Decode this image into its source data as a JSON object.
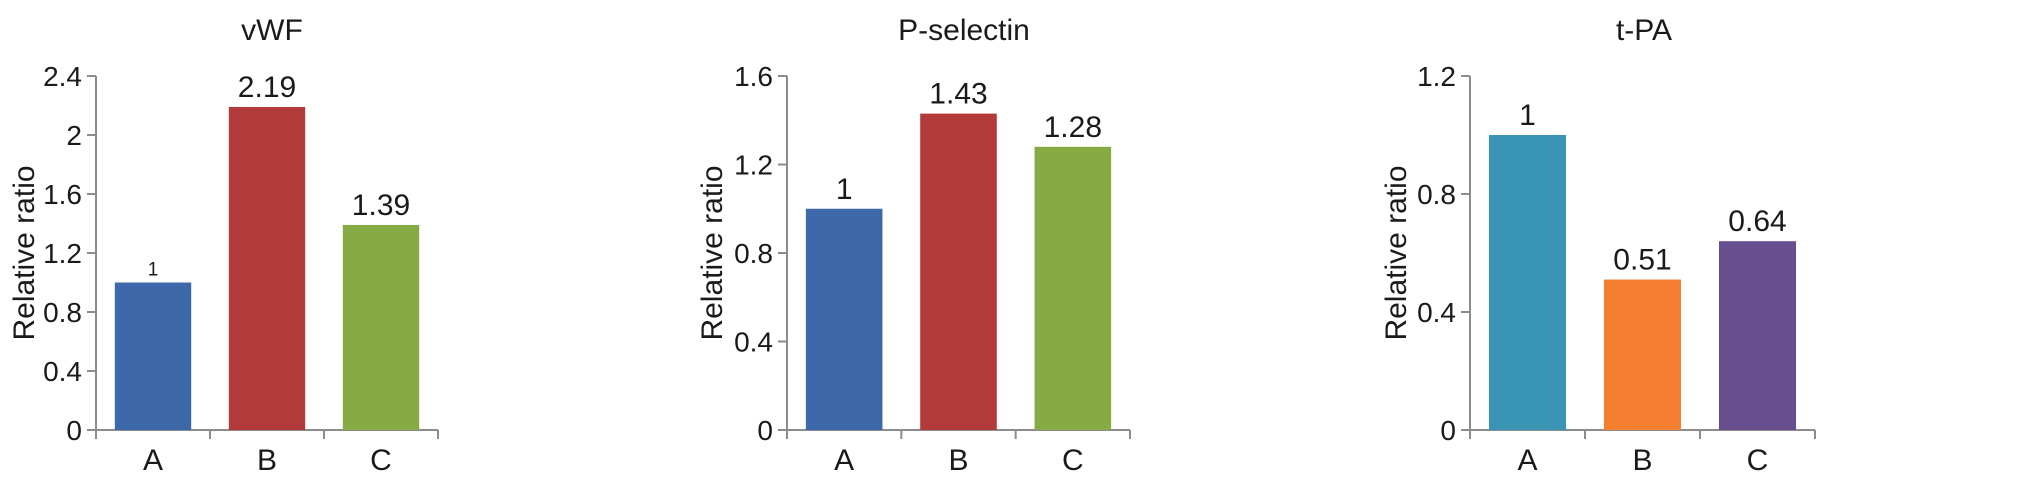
{
  "chart_data": [
    {
      "type": "bar",
      "title": "vWF",
      "ylabel": "Relative ratio",
      "xlabel": "",
      "categories": [
        "A",
        "B",
        "C"
      ],
      "values": [
        1,
        2.19,
        1.39
      ],
      "value_labels": [
        "1",
        "2.19",
        "1.39"
      ],
      "ylim": [
        0,
        2.4
      ],
      "yticks": [
        "0",
        "0.4",
        "0.8",
        "1.2",
        "1.6",
        "2",
        "2.4"
      ],
      "bar_colors": [
        "#3d68aa",
        "#b33a3a",
        "#86ab45"
      ],
      "grid": false
    },
    {
      "type": "bar",
      "title": "P-selectin",
      "ylabel": "Relative ratio",
      "xlabel": "",
      "categories": [
        "A",
        "B",
        "C"
      ],
      "values": [
        1,
        1.43,
        1.28
      ],
      "value_labels": [
        "1",
        "1.43",
        "1.28"
      ],
      "ylim": [
        0,
        1.6
      ],
      "yticks": [
        "0",
        "0.4",
        "0.8",
        "1.2",
        "1.6"
      ],
      "bar_colors": [
        "#3d68aa",
        "#b33a3a",
        "#86ab45"
      ],
      "grid": false
    },
    {
      "type": "bar",
      "title": "t-PA",
      "ylabel": "Relative ratio",
      "xlabel": "",
      "categories": [
        "A",
        "B",
        "C"
      ],
      "values": [
        1,
        0.51,
        0.64
      ],
      "value_labels": [
        "1",
        "0.51",
        "0.64"
      ],
      "ylim": [
        0,
        1.2
      ],
      "yticks": [
        "0",
        "0.4",
        "0.8",
        "1.2"
      ],
      "bar_colors": [
        "#3a95b5",
        "#f47f31",
        "#674f8f"
      ],
      "grid": false
    }
  ]
}
